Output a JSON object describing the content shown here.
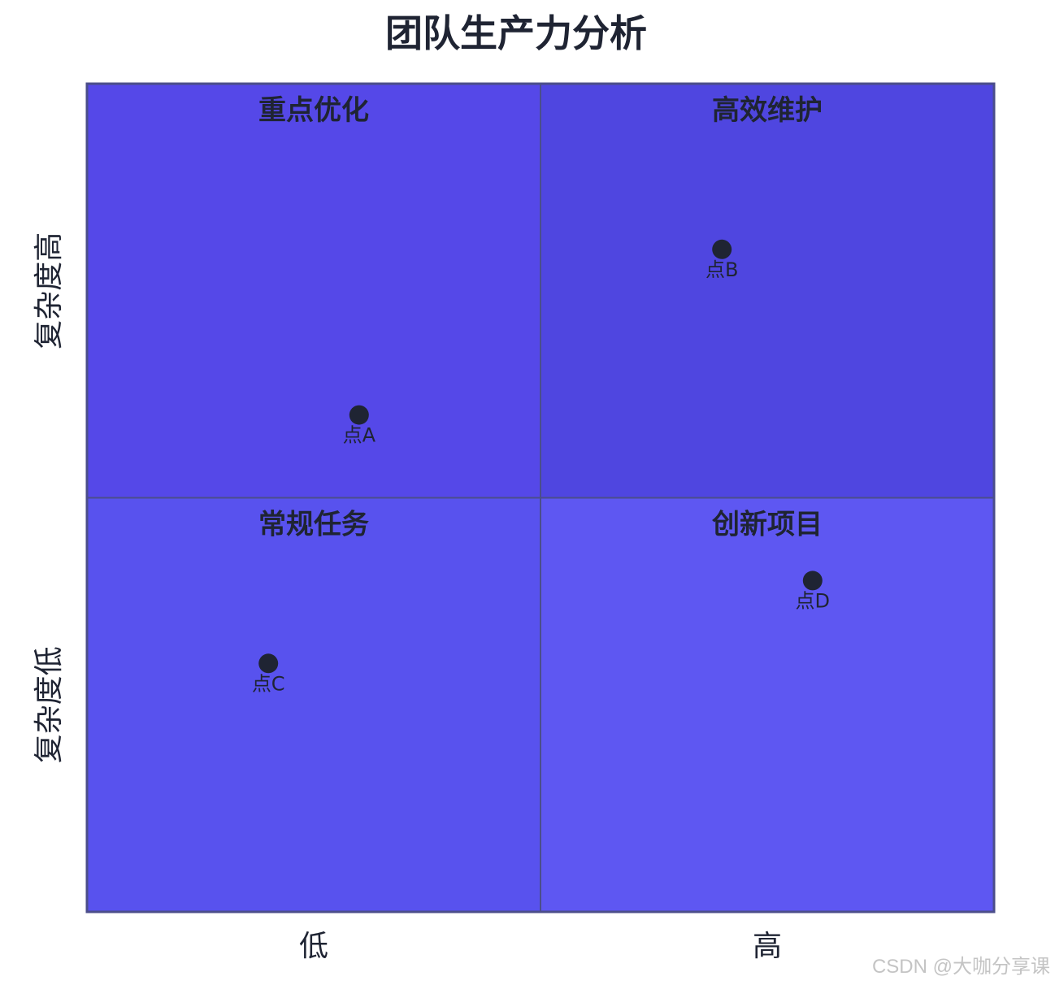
{
  "title": "团队生产力分析",
  "watermark": "CSDN @大咖分享课",
  "colors": {
    "q_top_left": "#5548E8",
    "q_top_right": "#4F46E0",
    "q_bottom_left": "#5852EE",
    "q_bottom_right": "#5E57F2",
    "border": "#4B4E8A",
    "point": "#1F2433"
  },
  "chart_data": {
    "type": "scatter",
    "title": "团队生产力分析",
    "x_axis_labels": [
      "低",
      "高"
    ],
    "y_axis_labels": [
      "复杂度低",
      "复杂度高"
    ],
    "xlim": [
      0,
      1
    ],
    "ylim": [
      0,
      1
    ],
    "quadrants": [
      {
        "name": "重点优化",
        "position": "top-left"
      },
      {
        "name": "高效维护",
        "position": "top-right"
      },
      {
        "name": "常规任务",
        "position": "bottom-left"
      },
      {
        "name": "创新项目",
        "position": "bottom-right"
      }
    ],
    "points": [
      {
        "label": "点A",
        "x": 0.3,
        "y": 0.6
      },
      {
        "label": "点B",
        "x": 0.7,
        "y": 0.8
      },
      {
        "label": "点C",
        "x": 0.2,
        "y": 0.3
      },
      {
        "label": "点D",
        "x": 0.8,
        "y": 0.4
      }
    ]
  }
}
